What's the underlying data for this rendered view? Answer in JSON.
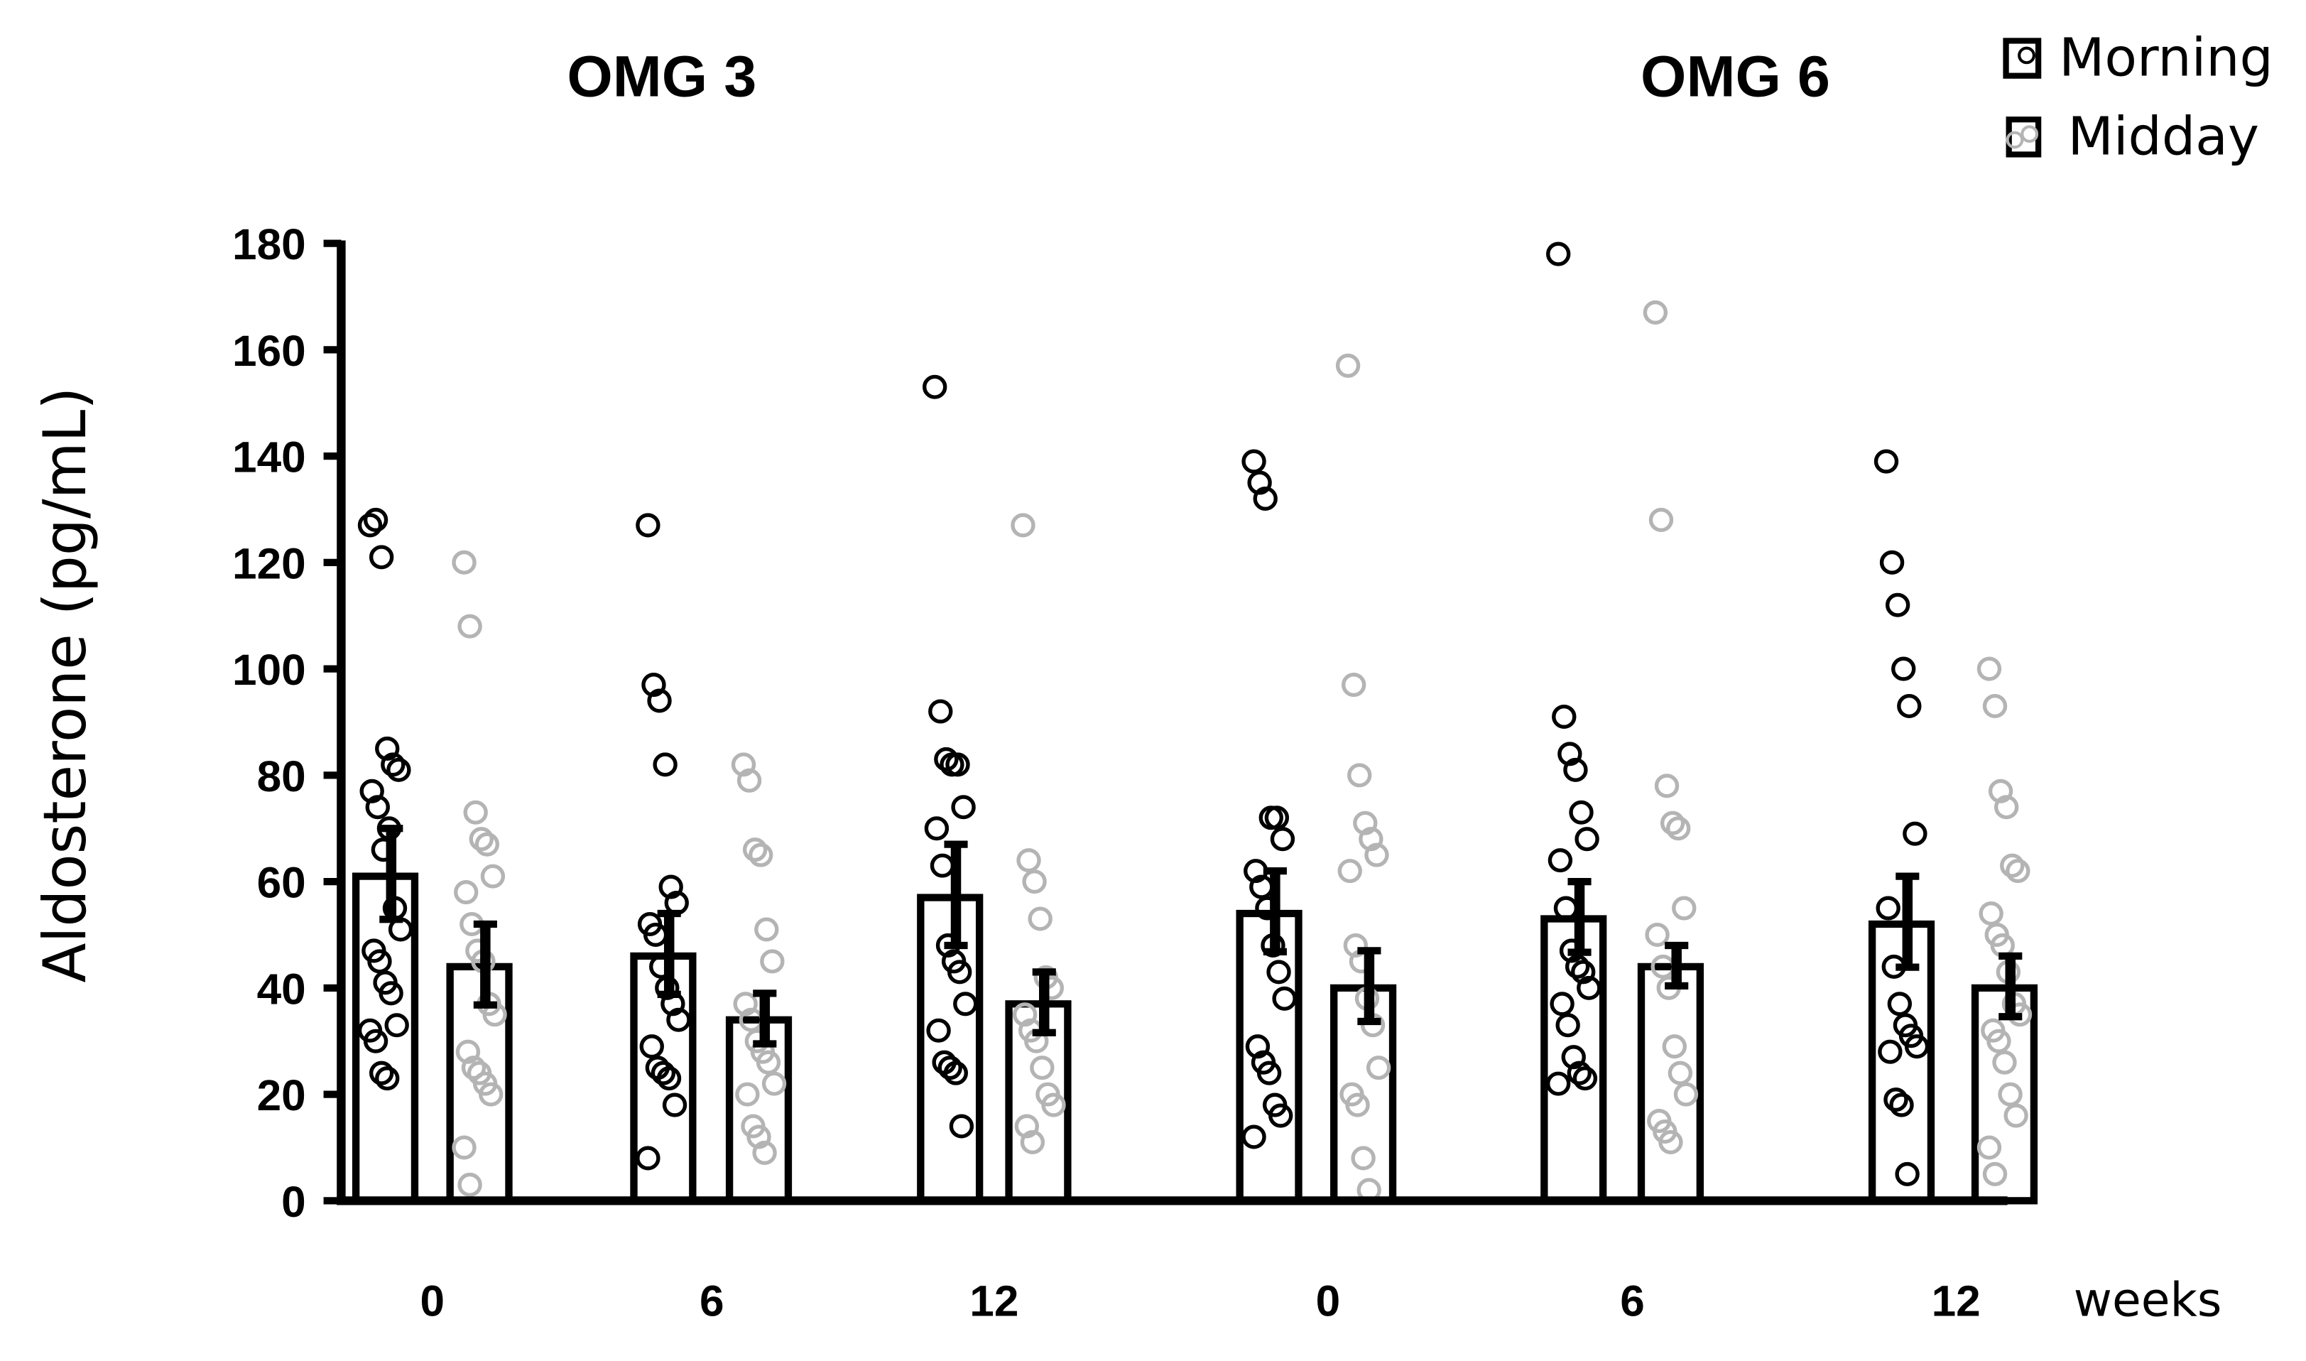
{
  "chart_data": {
    "type": "bar",
    "panels": [
      "OMG 3",
      "OMG 6"
    ],
    "categories": [
      "0",
      "6",
      "12",
      "0",
      "6",
      "12"
    ],
    "xlabel": "weeks",
    "ylabel": "Aldosterone (pg/mL)",
    "ylim": [
      0,
      180
    ],
    "yticks": [
      0,
      20,
      40,
      60,
      80,
      100,
      120,
      140,
      160,
      180
    ],
    "legend": [
      "Morning",
      "Midday"
    ],
    "legend_position": "top-right",
    "grid": false,
    "series": [
      {
        "name": "Morning",
        "color": "#000000",
        "values": [
          61,
          46,
          57,
          54,
          53,
          52
        ],
        "sem": [
          9,
          8,
          10,
          8,
          7,
          9
        ],
        "points": [
          [
            127,
            128,
            121,
            85,
            82,
            81,
            77,
            74,
            66,
            70,
            55,
            51,
            47,
            45,
            41,
            39,
            33,
            32,
            30,
            24,
            23
          ],
          [
            127,
            97,
            94,
            82,
            59,
            56,
            52,
            50,
            44,
            40,
            37,
            34,
            29,
            25,
            24,
            23,
            18,
            8
          ],
          [
            153,
            92,
            83,
            82,
            82,
            74,
            70,
            63,
            48,
            45,
            43,
            37,
            32,
            26,
            25,
            24,
            14
          ],
          [
            139,
            135,
            132,
            72,
            72,
            68,
            62,
            59,
            55,
            48,
            43,
            38,
            29,
            26,
            24,
            18,
            16,
            12
          ],
          [
            178,
            91,
            84,
            81,
            73,
            68,
            64,
            55,
            47,
            44,
            43,
            40,
            37,
            33,
            27,
            24,
            23,
            22
          ],
          [
            139,
            120,
            112,
            100,
            93,
            69,
            55,
            44,
            37,
            33,
            31,
            29,
            28,
            19,
            18,
            5
          ]
        ]
      },
      {
        "name": "Midday",
        "color": "#B4B4B4",
        "values": [
          44,
          34,
          37,
          40,
          44,
          40
        ],
        "sem": [
          8,
          5,
          6,
          7,
          4,
          6
        ],
        "points": [
          [
            120,
            108,
            73,
            68,
            67,
            61,
            58,
            52,
            47,
            45,
            37,
            35,
            28,
            25,
            24,
            22,
            20,
            10,
            3
          ],
          [
            82,
            79,
            66,
            65,
            51,
            45,
            37,
            34,
            30,
            28,
            26,
            22,
            20,
            14,
            12,
            9
          ],
          [
            127,
            64,
            60,
            53,
            42,
            40,
            35,
            32,
            30,
            25,
            20,
            18,
            14,
            11
          ],
          [
            157,
            97,
            80,
            71,
            68,
            65,
            62,
            48,
            45,
            38,
            33,
            25,
            20,
            18,
            8,
            2
          ],
          [
            167,
            128,
            78,
            71,
            70,
            55,
            50,
            44,
            40,
            29,
            24,
            20,
            15,
            13,
            11
          ],
          [
            100,
            93,
            77,
            74,
            63,
            62,
            54,
            50,
            48,
            43,
            37,
            35,
            32,
            30,
            26,
            20,
            16,
            10,
            5
          ]
        ]
      }
    ]
  },
  "titles": {
    "left": "OMG 3",
    "right": "OMG 6"
  },
  "axis": {
    "ylabel": "Aldosterone (pg/mL)",
    "xlabel": "weeks",
    "yticks": [
      "0",
      "20",
      "40",
      "60",
      "80",
      "100",
      "120",
      "140",
      "160",
      "180"
    ],
    "xticks": [
      "0",
      "6",
      "12",
      "0",
      "6",
      "12"
    ]
  },
  "legend": {
    "morning": "Morning",
    "midday": "Midday"
  },
  "colors": {
    "morning": "#000000",
    "midday": "#B4B4B4",
    "bar_fill": "#FFFFFF"
  }
}
